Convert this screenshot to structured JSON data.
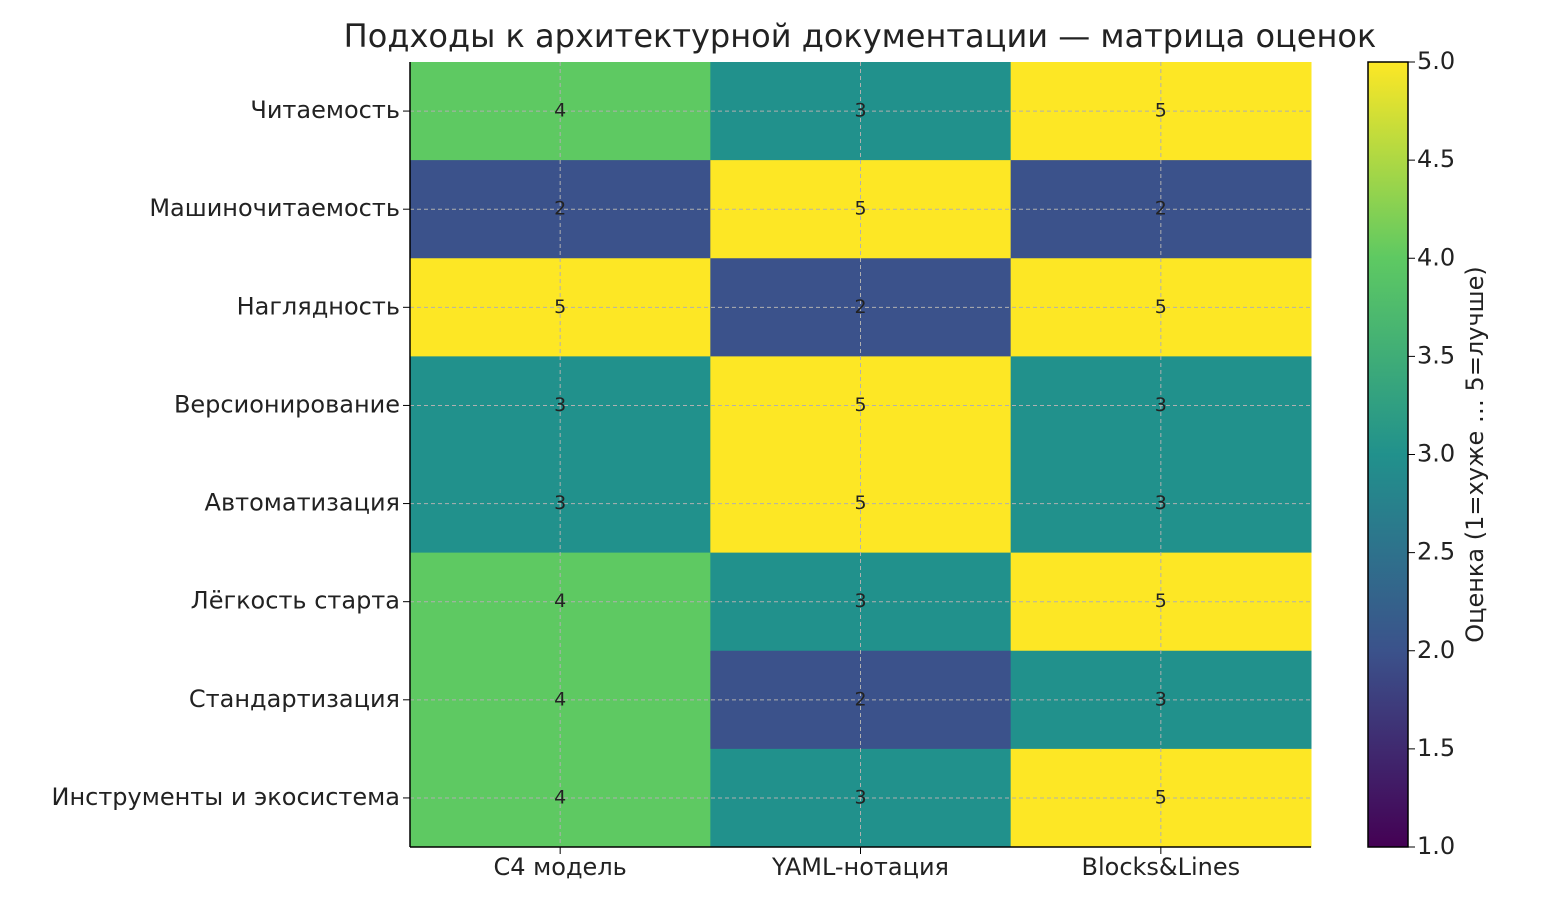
{
  "chart_data": {
    "type": "heatmap",
    "title": "Подходы к архитектурной документации — матрица оценок",
    "x_categories": [
      "C4 модель",
      "YAML-нотация",
      "Blocks&Lines"
    ],
    "y_categories": [
      "Читаемость",
      "Машиночитаемость",
      "Наглядность",
      "Версионирование",
      "Автоматизация",
      "Лёгкость старта",
      "Стандартизация",
      "Инструменты и экосистема"
    ],
    "values": [
      [
        4,
        3,
        5
      ],
      [
        2,
        5,
        2
      ],
      [
        5,
        2,
        5
      ],
      [
        3,
        5,
        3
      ],
      [
        3,
        5,
        3
      ],
      [
        4,
        3,
        5
      ],
      [
        4,
        2,
        3
      ],
      [
        4,
        3,
        5
      ]
    ],
    "colormap": "viridis",
    "grid": true,
    "colorbar": {
      "label": "Оценка (1=хуже … 5=лучше)",
      "lim": [
        1,
        5
      ],
      "ticks": [
        {
          "value": 1,
          "label": "1.0"
        },
        1.5,
        {
          "value": 2,
          "label": "2.0"
        },
        2.5,
        {
          "value": 3,
          "label": "3.0"
        },
        3.5,
        {
          "value": 4,
          "label": "4.0"
        },
        4.5,
        {
          "value": 5,
          "label": "5.0"
        }
      ]
    }
  }
}
